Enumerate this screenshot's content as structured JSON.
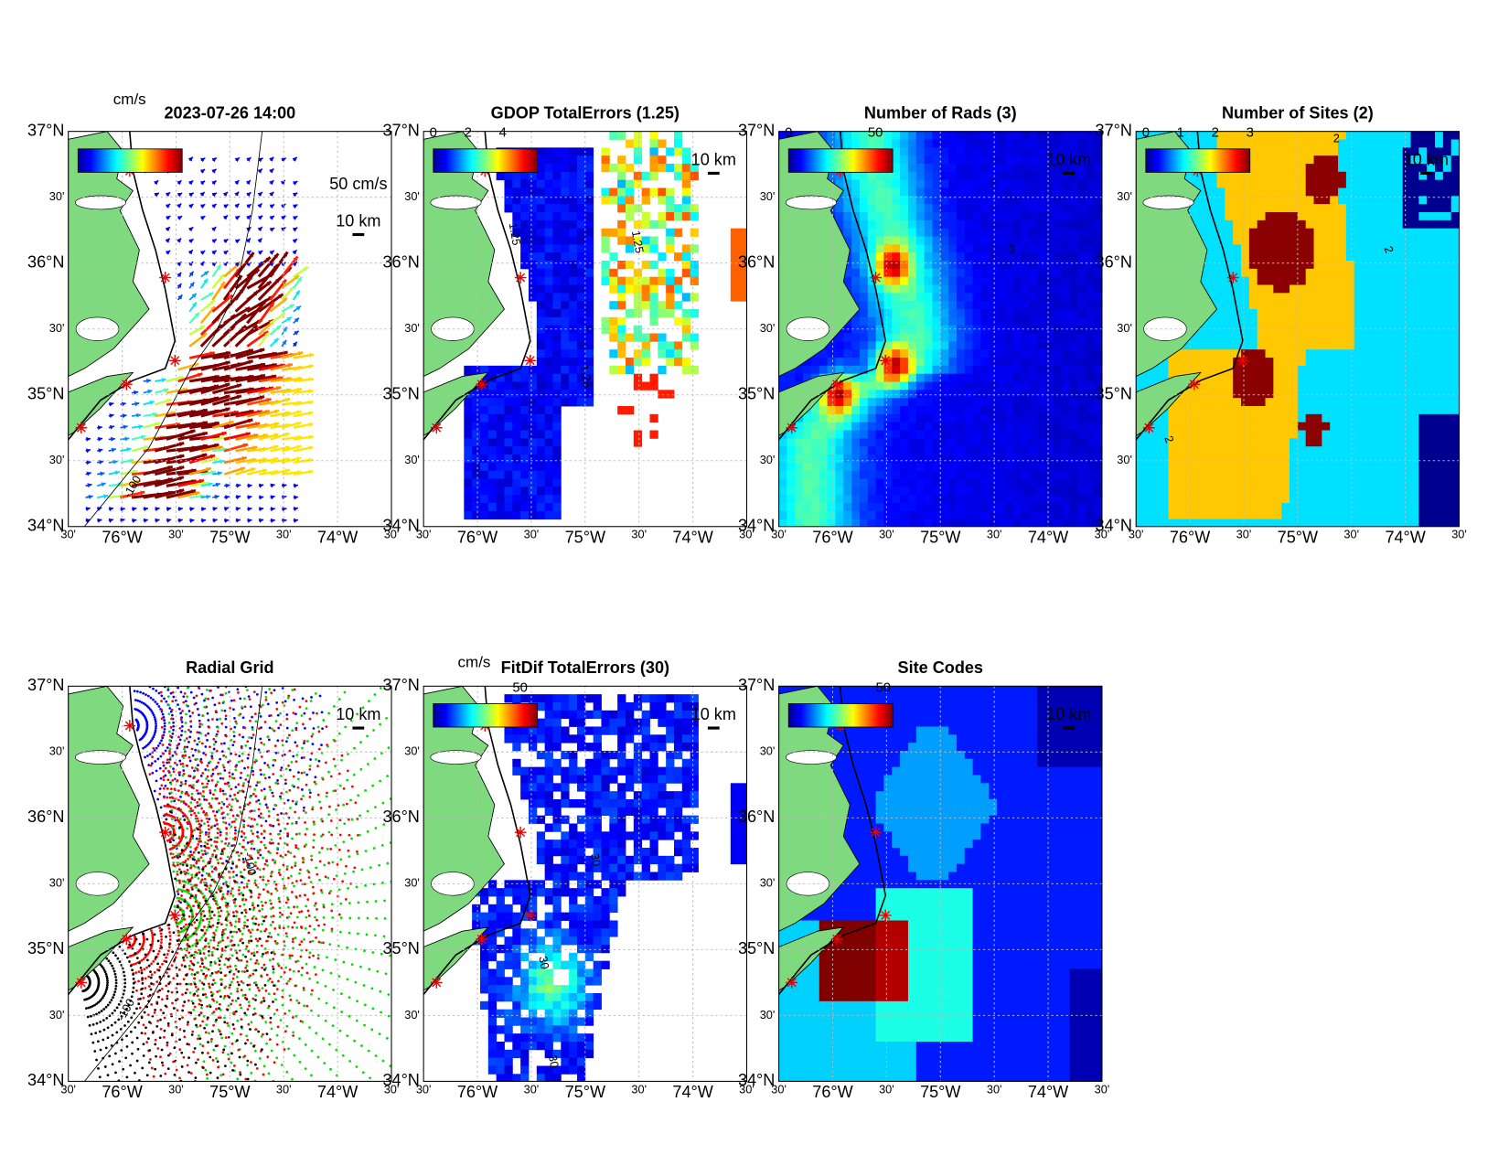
{
  "axes": {
    "lat_ticks": [
      "37°N",
      "30'",
      "36°N",
      "30'",
      "35°N",
      "30'",
      "34°N"
    ],
    "lon_ticks": [
      "30'",
      "76°W",
      "30'",
      "75°W",
      "30'",
      "74°W",
      "30'"
    ]
  },
  "panels": [
    {
      "title": "2023-07-26 14:00",
      "colorbar_label": "cm/s",
      "scale_label": "10 km",
      "vector_scale_label": "50 cm/s",
      "contour_labels": [
        "-100"
      ]
    },
    {
      "title": "GDOP TotalErrors (1.25)",
      "colorbar_ticks": [
        0,
        2,
        4
      ],
      "clim": [
        0,
        6
      ],
      "scale_label": "10 km",
      "contour_labels": [
        "1.25",
        "1.25",
        "1.25"
      ]
    },
    {
      "title": "Number of Rads (3)",
      "colorbar_ticks": [
        0,
        50
      ],
      "clim": [
        0,
        60
      ],
      "scale_label": "10 km",
      "contour_labels": [
        "3"
      ]
    },
    {
      "title": "Number of Sites (2)",
      "colorbar_ticks": [
        0,
        1,
        2,
        3
      ],
      "clim": [
        0,
        3
      ],
      "scale_label": "10 km",
      "contour_labels": [
        "2",
        "2",
        "2"
      ]
    },
    {
      "title": "Radial Grid",
      "scale_label": "10 km",
      "contour_labels": [
        "-100",
        "-100"
      ]
    },
    {
      "title": "FitDif TotalErrors (30)",
      "colorbar_label": "cm/s",
      "colorbar_ticks": [
        50
      ],
      "clim": [
        0,
        60
      ],
      "scale_label": "10 km",
      "contour_labels": [
        "30",
        "30",
        "30"
      ]
    },
    {
      "title": "Site Codes",
      "colorbar_ticks": [
        50
      ],
      "clim": [
        0,
        55
      ],
      "scale_label": "10 km"
    }
  ]
}
